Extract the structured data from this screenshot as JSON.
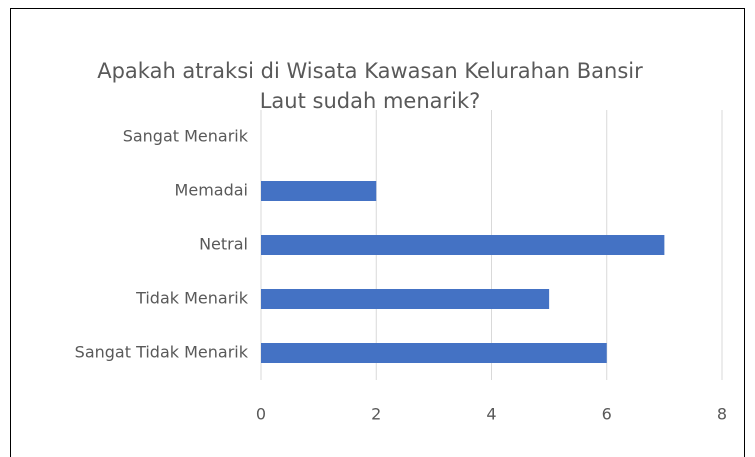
{
  "chart_data": {
    "type": "bar",
    "orientation": "horizontal",
    "title": "Apakah atraksi di Wisata Kawasan Kelurahan Bansir Laut sudah menarik?",
    "categories": [
      "Sangat Menarik",
      "Memadai",
      "Netral",
      "Tidak Menarik",
      "Sangat Tidak Menarik"
    ],
    "values": [
      0,
      2,
      7,
      5,
      6
    ],
    "color": "#4472c4",
    "xlim": [
      0,
      8
    ],
    "xticks": [
      0,
      2,
      4,
      6,
      8
    ],
    "grid": true
  }
}
